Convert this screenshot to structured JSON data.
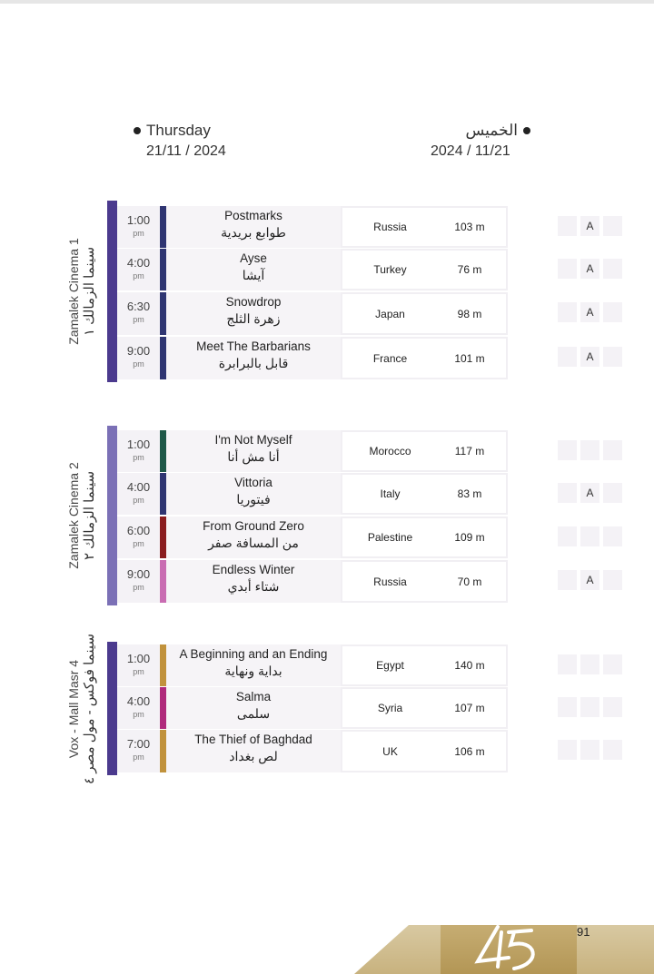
{
  "header": {
    "left_day": "Thursday",
    "left_date": "21/11 / 2024",
    "right_day": "الخميس",
    "right_date": "2024 / 11/21"
  },
  "colors": {
    "purple": "#4b3a8e",
    "lavender": "#7b70b6",
    "navy": "#2f3572",
    "green": "#1f5848",
    "red": "#8a1d1f",
    "pink": "#c96cb2",
    "gold": "#c1923c",
    "magenta": "#b02a7c"
  },
  "blocks": [
    {
      "venue_en": "Zamalek Cinema 1",
      "venue_ar": "سينما الزمالك ١",
      "rows": [
        {
          "time": "1:00",
          "ampm": "pm",
          "title_en": "Postmarks",
          "title_ar": "طوابع بريدية",
          "country": "Russia",
          "duration": "103 m",
          "boxes": [
            "",
            "A",
            ""
          ]
        },
        {
          "time": "4:00",
          "ampm": "pm",
          "title_en": "Ayse",
          "title_ar": "آيشا",
          "country": "Turkey",
          "duration": "76 m",
          "boxes": [
            "",
            "A",
            ""
          ]
        },
        {
          "time": "6:30",
          "ampm": "pm",
          "title_en": "Snowdrop",
          "title_ar": "زهرة الثلج",
          "country": "Japan",
          "duration": "98 m",
          "boxes": [
            "",
            "A",
            ""
          ]
        },
        {
          "time": "9:00",
          "ampm": "pm",
          "title_en": "Meet The Barbarians",
          "title_ar": "قابل بالبرابرة",
          "country": "France",
          "duration": "101 m",
          "boxes": [
            "",
            "A",
            ""
          ]
        }
      ]
    },
    {
      "venue_en": "Zamalek Cinema 2",
      "venue_ar": "سينما الزمالك ٢",
      "rows": [
        {
          "time": "1:00",
          "ampm": "pm",
          "title_en": "I'm Not Myself",
          "title_ar": "أنا مش أنا",
          "country": "Morocco",
          "duration": "117 m",
          "boxes": [
            "",
            "",
            ""
          ]
        },
        {
          "time": "4:00",
          "ampm": "pm",
          "title_en": "Vittoria",
          "title_ar": "فيتوريا",
          "country": "Italy",
          "duration": "83 m",
          "boxes": [
            "",
            "A",
            ""
          ]
        },
        {
          "time": "6:00",
          "ampm": "pm",
          "title_en": "From Ground Zero",
          "title_ar": "من المسافة صفر",
          "country": "Palestine",
          "duration": "109 m",
          "boxes": [
            "",
            "",
            ""
          ]
        },
        {
          "time": "9:00",
          "ampm": "pm",
          "title_en": "Endless Winter",
          "title_ar": "شتاء أبدي",
          "country": "Russia",
          "duration": "70 m",
          "boxes": [
            "",
            "A",
            ""
          ]
        }
      ]
    },
    {
      "venue_en": "Vox - Mall Masr  4",
      "venue_ar": "سينما فوكس - مول مصر ٤",
      "rows": [
        {
          "time": "1:00",
          "ampm": "pm",
          "title_en": "A Beginning and an Ending",
          "title_ar": "بداية ونهاية",
          "country": "Egypt",
          "duration": "140 m",
          "boxes": [
            "",
            "",
            ""
          ]
        },
        {
          "time": "4:00",
          "ampm": "pm",
          "title_en": "Salma",
          "title_ar": "سلمى",
          "country": "Syria",
          "duration": "107 m",
          "boxes": [
            "",
            "",
            ""
          ]
        },
        {
          "time": "7:00",
          "ampm": "pm",
          "title_en": "The Thief of Baghdad",
          "title_ar": "لص بغداد",
          "country": "UK",
          "duration": "106 m",
          "boxes": [
            "",
            "",
            ""
          ]
        }
      ]
    }
  ],
  "footer": {
    "logo": "45",
    "page_number": "91"
  }
}
